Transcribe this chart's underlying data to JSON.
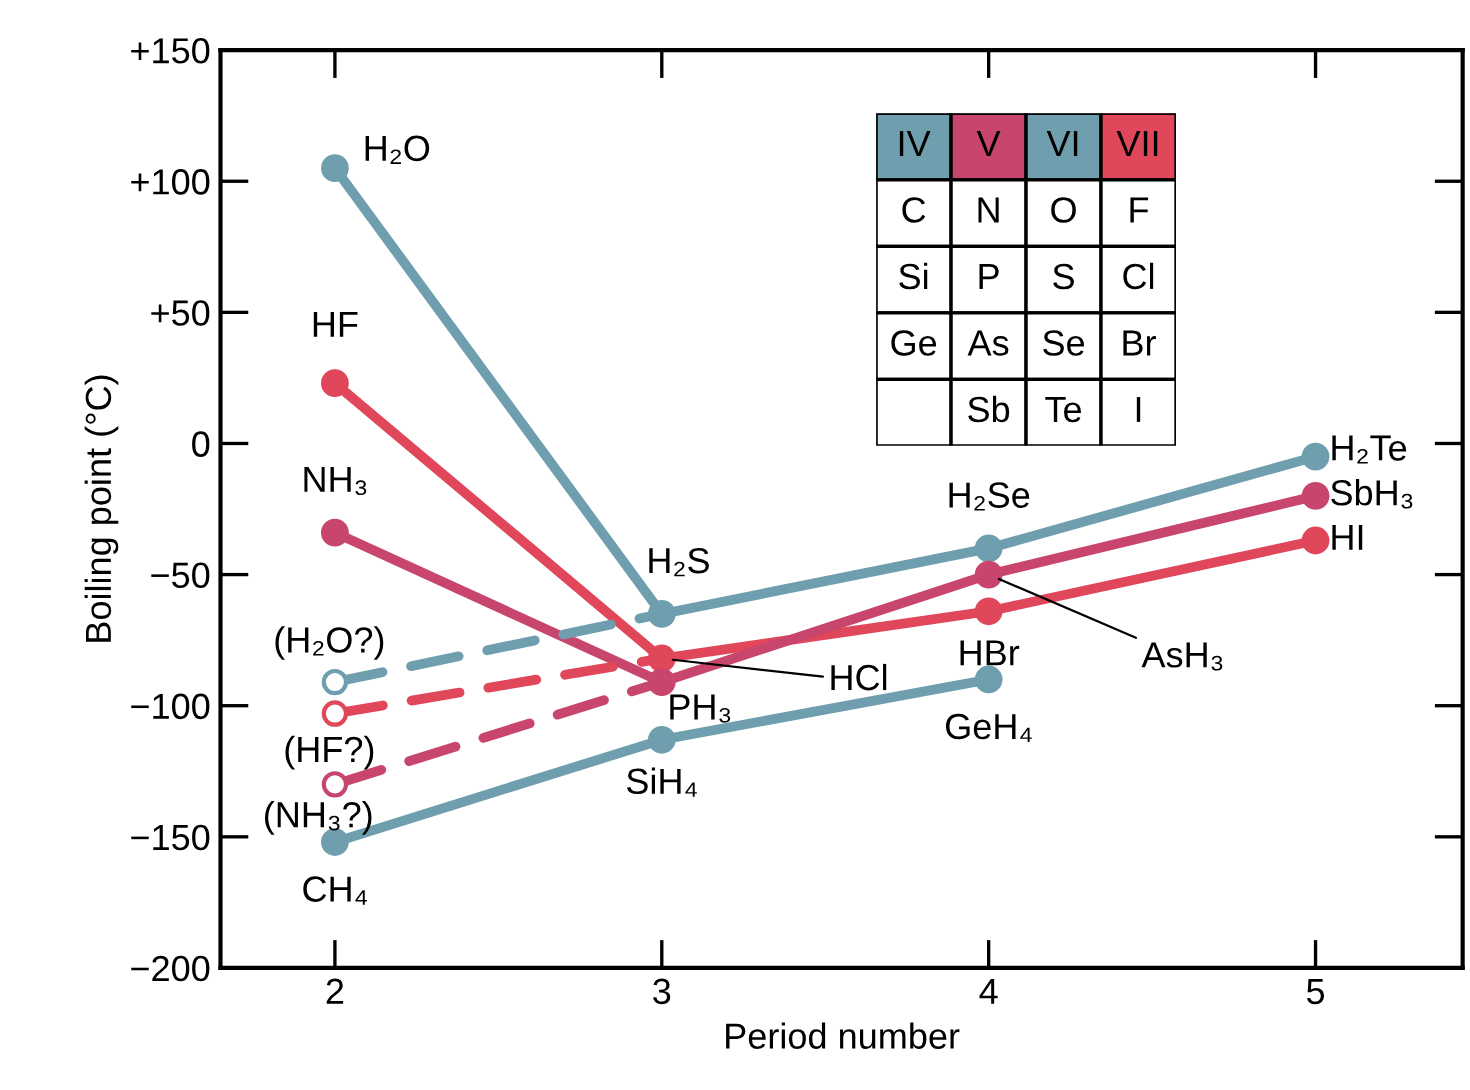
{
  "chart_data": [
    {
      "type": "line",
      "xlabel": "Period number",
      "ylabel": "Boiling point (°C)",
      "xlim": [
        1.65,
        5.45
      ],
      "xticks": [
        2,
        3,
        4,
        5
      ],
      "ylim": [
        -200,
        150
      ],
      "yticks": [
        {
          "value": 150,
          "label": "+150"
        },
        {
          "value": 100,
          "label": "+100"
        },
        {
          "value": 50,
          "label": "+50"
        },
        0,
        {
          "value": -50,
          "label": "−50"
        },
        {
          "value": -100,
          "label": "−100"
        },
        {
          "value": -150,
          "label": "−150"
        },
        {
          "value": -200,
          "label": "−200"
        }
      ],
      "grid": false,
      "legend": false,
      "marker": "circle",
      "series": [
        {
          "color": "#6f9fae",
          "x": [
            2,
            3,
            4,
            5
          ],
          "values": [
            105,
            -65,
            -40,
            -5
          ],
          "line_style": "solid"
        },
        {
          "color": "#e0475a",
          "x": [
            2,
            3,
            4,
            5
          ],
          "values": [
            23,
            -82,
            -64,
            -37
          ],
          "line_style": "solid"
        },
        {
          "color": "#c8466e",
          "x": [
            2,
            3,
            4,
            5
          ],
          "values": [
            -34,
            -91,
            -50,
            -20
          ],
          "line_style": "solid"
        },
        {
          "color": "#6f9fae",
          "x": [
            2,
            3,
            4
          ],
          "values": [
            -152,
            -113,
            -90
          ],
          "line_style": "solid"
        },
        {
          "color": "#6f9fae",
          "x": [
            2,
            3
          ],
          "values": [
            -91,
            -65
          ],
          "line_style": "dashed"
        },
        {
          "color": "#e0475a",
          "x": [
            2,
            3
          ],
          "values": [
            -103,
            -82
          ],
          "line_style": "dashed"
        },
        {
          "color": "#c8466e",
          "x": [
            2,
            3
          ],
          "values": [
            -130,
            -91
          ],
          "line_style": "dashed"
        }
      ],
      "annotations": [
        {
          "text": "H₂O",
          "x": 2,
          "y": 105
        },
        {
          "text": "HF",
          "x": 2,
          "y": 23
        },
        {
          "text": "NH₃",
          "x": 2,
          "y": -34
        },
        {
          "text": "(H₂O?)",
          "x": 2,
          "y": -91
        },
        {
          "text": "(HF?)",
          "x": 2,
          "y": -103
        },
        {
          "text": "(NH₃?)",
          "x": 2,
          "y": -130
        },
        {
          "text": "CH₄",
          "x": 2,
          "y": -152
        },
        {
          "text": "H₂S",
          "x": 3,
          "y": -65
        },
        {
          "text": "HCl",
          "x": 3,
          "y": -82
        },
        {
          "text": "PH₃",
          "x": 3,
          "y": -91
        },
        {
          "text": "SiH₄",
          "x": 3,
          "y": -113
        },
        {
          "text": "H₂Se",
          "x": 4,
          "y": -40
        },
        {
          "text": "AsH₃",
          "x": 4,
          "y": -50
        },
        {
          "text": "HBr",
          "x": 4,
          "y": -64
        },
        {
          "text": "GeH₄",
          "x": 4,
          "y": -90
        },
        {
          "text": "H₂Te",
          "x": 5,
          "y": -5
        },
        {
          "text": "SbH₃",
          "x": 5,
          "y": -20
        },
        {
          "text": "HI",
          "x": 5,
          "y": -37
        }
      ]
    },
    {
      "type": "other",
      "categories": [
        "IV",
        "V",
        "VI",
        "VII"
      ],
      "colors": [
        "#6f9fae",
        "#c8466e",
        "#6f9fae",
        "#e0475a"
      ],
      "cell_labels": [
        [
          "C",
          "N",
          "O",
          "F"
        ],
        [
          "Si",
          "P",
          "S",
          "Cl"
        ],
        [
          "Ge",
          "As",
          "Se",
          "Br"
        ],
        [
          null,
          "Sb",
          "Te",
          "I"
        ]
      ]
    }
  ]
}
